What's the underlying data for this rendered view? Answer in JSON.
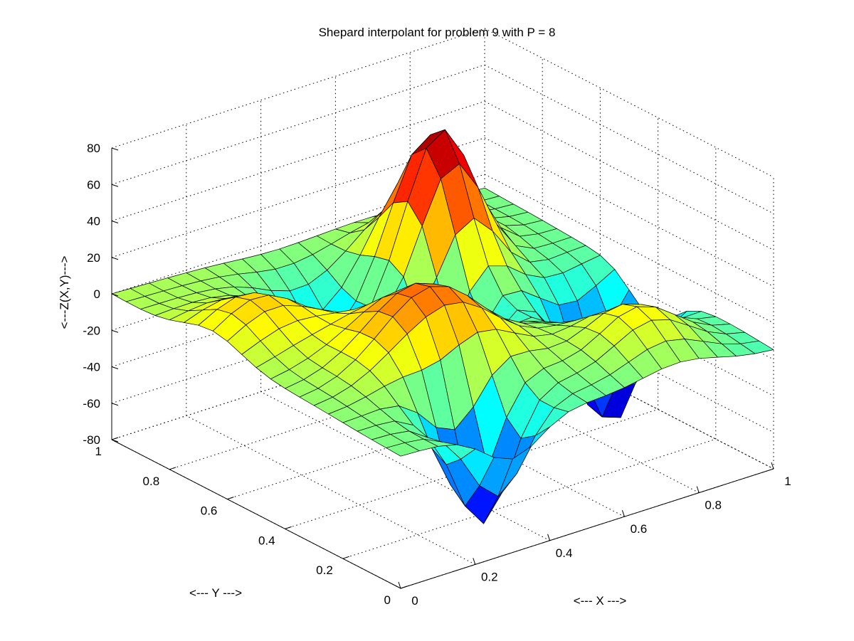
{
  "chart_data": {
    "type": "surface",
    "title": "Shepard interpolant for problem 9 with P = 8",
    "xlabel": "<--- X --->",
    "ylabel": "<--- Y --->",
    "zlabel": "<---Z(X,Y)--->",
    "xlim": [
      0,
      1
    ],
    "ylim": [
      0,
      1
    ],
    "zlim": [
      -80,
      80
    ],
    "xticks": [
      0,
      0.2,
      0.4,
      0.6,
      0.8,
      1
    ],
    "xtick_labels": [
      "0",
      "0.2",
      "0.4",
      "0.6",
      "0.8",
      "1"
    ],
    "yticks": [
      0,
      0.2,
      0.4,
      0.6,
      0.8,
      1
    ],
    "ytick_labels": [
      "0",
      "0.2",
      "0.4",
      "0.6",
      "0.8",
      "1"
    ],
    "zticks": [
      -80,
      -60,
      -40,
      -20,
      0,
      20,
      40,
      60,
      80
    ],
    "ztick_labels": [
      "-80",
      "-60",
      "-40",
      "-20",
      "0",
      "20",
      "40",
      "60",
      "80"
    ],
    "grid": true,
    "colormap": "jet",
    "grid_resolution": 21,
    "peaks": [
      {
        "x": 0.7,
        "y": 0.75,
        "z": 82,
        "sigma": 0.09
      },
      {
        "x": 0.35,
        "y": 0.35,
        "z": 42,
        "sigma": 0.13
      },
      {
        "x": 0.12,
        "y": 0.65,
        "z": 22,
        "sigma": 0.1
      },
      {
        "x": 0.75,
        "y": 0.15,
        "z": 25,
        "sigma": 0.1
      }
    ],
    "troughs": [
      {
        "x": 0.3,
        "y": 0.12,
        "z": -72,
        "sigma": 0.075
      },
      {
        "x": 0.88,
        "y": 0.42,
        "z": -72,
        "sigma": 0.075
      },
      {
        "x": 0.55,
        "y": 0.55,
        "z": -58,
        "sigma": 0.07
      },
      {
        "x": 0.42,
        "y": 0.78,
        "z": -32,
        "sigma": 0.09
      },
      {
        "x": 0.78,
        "y": 0.7,
        "z": -20,
        "sigma": 0.08
      }
    ],
    "edge_values": {
      "x0_y1": 0,
      "x1_y0": -15
    }
  }
}
